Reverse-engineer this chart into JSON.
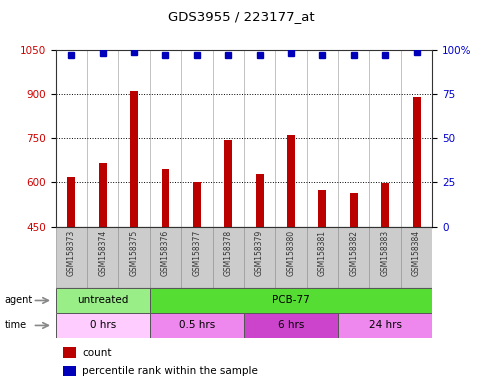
{
  "title": "GDS3955 / 223177_at",
  "samples": [
    "GSM158373",
    "GSM158374",
    "GSM158375",
    "GSM158376",
    "GSM158377",
    "GSM158378",
    "GSM158379",
    "GSM158380",
    "GSM158381",
    "GSM158382",
    "GSM158383",
    "GSM158384"
  ],
  "counts": [
    620,
    665,
    910,
    645,
    600,
    745,
    630,
    760,
    575,
    565,
    598,
    890
  ],
  "percentile_ranks": [
    97,
    98,
    99,
    97,
    97,
    97,
    97,
    98,
    97,
    97,
    97,
    99
  ],
  "ylim_left": [
    450,
    1050
  ],
  "ylim_right": [
    0,
    100
  ],
  "yticks_left": [
    450,
    600,
    750,
    900,
    1050
  ],
  "yticks_right": [
    0,
    25,
    50,
    75,
    100
  ],
  "bar_color": "#bb0000",
  "dot_color": "#0000bb",
  "agent_groups": [
    {
      "label": "untreated",
      "start": 0,
      "end": 3,
      "color": "#99ee88"
    },
    {
      "label": "PCB-77",
      "start": 3,
      "end": 12,
      "color": "#55dd33"
    }
  ],
  "time_groups": [
    {
      "label": "0 hrs",
      "start": 0,
      "end": 3,
      "color": "#ffccff"
    },
    {
      "label": "0.5 hrs",
      "start": 3,
      "end": 6,
      "color": "#ee88ee"
    },
    {
      "label": "6 hrs",
      "start": 6,
      "end": 9,
      "color": "#cc44cc"
    },
    {
      "label": "24 hrs",
      "start": 9,
      "end": 12,
      "color": "#ee88ee"
    }
  ],
  "left_axis_color": "#cc0000",
  "right_axis_color": "#0000cc",
  "grid_color": "#000000",
  "background_color": "#ffffff",
  "xlabel_bg_color": "#cccccc",
  "plot_bg_color": "#ffffff"
}
